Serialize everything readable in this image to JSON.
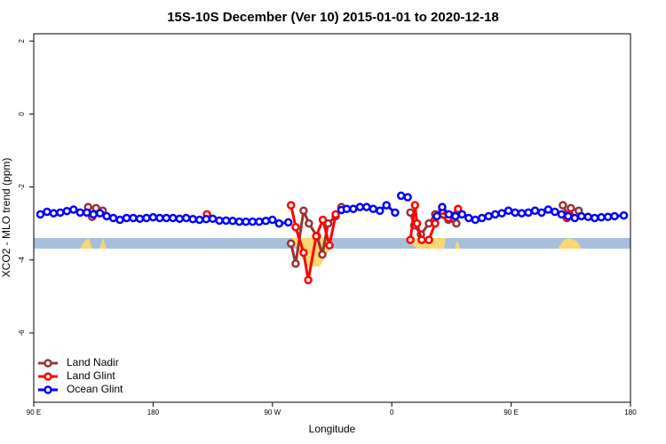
{
  "chart_data": {
    "type": "line",
    "title": "15S-10S December (Ver 10)   2015-01-01 to 2020-12-18",
    "x_label": "Longitude",
    "y_label": "XCO2 - MLO trend (ppm)",
    "xlim": [
      90,
      540
    ],
    "xticks": [
      {
        "value": 90,
        "label": "90 E"
      },
      {
        "value": 180,
        "label": "180"
      },
      {
        "value": 270,
        "label": "90 W"
      },
      {
        "value": 360,
        "label": "0"
      },
      {
        "value": 450,
        "label": "90 E"
      },
      {
        "value": 540,
        "label": "180"
      }
    ],
    "ylim": [
      -7.9,
      2.2
    ],
    "yticks": [
      2,
      0,
      -2,
      -4,
      -6
    ],
    "legend": "bottom-left",
    "series": [
      {
        "name": "Land Nadir",
        "color": "#993333",
        "x": [
          131,
          134,
          137,
          142,
          null,
          284,
          287.5,
          293.5,
          297.5,
          303.6,
          307.6,
          312,
          317.7,
          322,
          null,
          374,
          377,
          382,
          388,
          392.7,
          402.7,
          408.7,
          null,
          489,
          493,
          495,
          501
        ],
        "values": [
          -2.55,
          -2.82,
          -2.58,
          -2.65,
          null,
          -3.55,
          -4.1,
          -2.65,
          -3.0,
          -3.35,
          -3.85,
          -3.0,
          -2.8,
          -2.55,
          null,
          -2.7,
          -3.05,
          -3.3,
          -3.0,
          -2.75,
          -2.9,
          -3.0,
          null,
          -2.5,
          -2.8,
          -2.58,
          -2.65
        ]
      },
      {
        "name": "Land Glint",
        "color": "#ff0000",
        "x": [
          220.6,
          null,
          284,
          287.5,
          293.5,
          297,
          303,
          308,
          313,
          317.7,
          null,
          374,
          377.5,
          379,
          382.6,
          388,
          392.7,
          398,
          402.7,
          410,
          null,
          492,
          494
        ],
        "values": [
          -2.75,
          null,
          -2.5,
          -3.1,
          -3.8,
          -4.55,
          -3.35,
          -2.9,
          -3.6,
          -2.75,
          null,
          -3.45,
          -2.5,
          -3.0,
          -3.45,
          -3.45,
          -3.0,
          -2.65,
          -2.85,
          -2.6,
          null,
          -2.85,
          -2.75
        ]
      },
      {
        "name": "Ocean Glint",
        "color": "#0000ff",
        "x": [
          95,
          100,
          105,
          110,
          115,
          120,
          125,
          130,
          135,
          140,
          145,
          150,
          155,
          160,
          165,
          170,
          175,
          180,
          185,
          190,
          195,
          200,
          205,
          210,
          215,
          220,
          225,
          230,
          235,
          240,
          245,
          250,
          255,
          260,
          265,
          270,
          275,
          282,
          null,
          322,
          326,
          331,
          336,
          341,
          346,
          351,
          356,
          362.5,
          null,
          367,
          372,
          null,
          394,
          398,
          403,
          408,
          413,
          418,
          423,
          428,
          433,
          438,
          443,
          448,
          453,
          458,
          463,
          468,
          473,
          478,
          483,
          488,
          493,
          498,
          503,
          508,
          513,
          518,
          523,
          528,
          535
        ],
        "values": [
          -2.75,
          -2.68,
          -2.72,
          -2.7,
          -2.66,
          -2.62,
          -2.7,
          -2.7,
          -2.75,
          -2.72,
          -2.8,
          -2.85,
          -2.9,
          -2.85,
          -2.85,
          -2.87,
          -2.85,
          -2.83,
          -2.85,
          -2.85,
          -2.85,
          -2.87,
          -2.85,
          -2.88,
          -2.9,
          -2.88,
          -2.87,
          -2.92,
          -2.92,
          -2.93,
          -2.95,
          -2.95,
          -2.95,
          -2.95,
          -2.93,
          -2.9,
          -3.0,
          -2.97,
          null,
          -2.63,
          -2.6,
          -2.6,
          -2.55,
          -2.55,
          -2.6,
          -2.65,
          -2.5,
          -2.7,
          null,
          -2.24,
          -2.28,
          null,
          -2.8,
          -2.55,
          -2.75,
          -2.8,
          -2.75,
          -2.85,
          -2.9,
          -2.85,
          -2.8,
          -2.75,
          -2.72,
          -2.65,
          -2.7,
          -2.72,
          -2.7,
          -2.65,
          -2.7,
          -2.62,
          -2.68,
          -2.75,
          -2.8,
          -2.85,
          -2.8,
          -2.82,
          -2.85,
          -2.83,
          -2.82,
          -2.8,
          -2.78
        ]
      }
    ]
  }
}
